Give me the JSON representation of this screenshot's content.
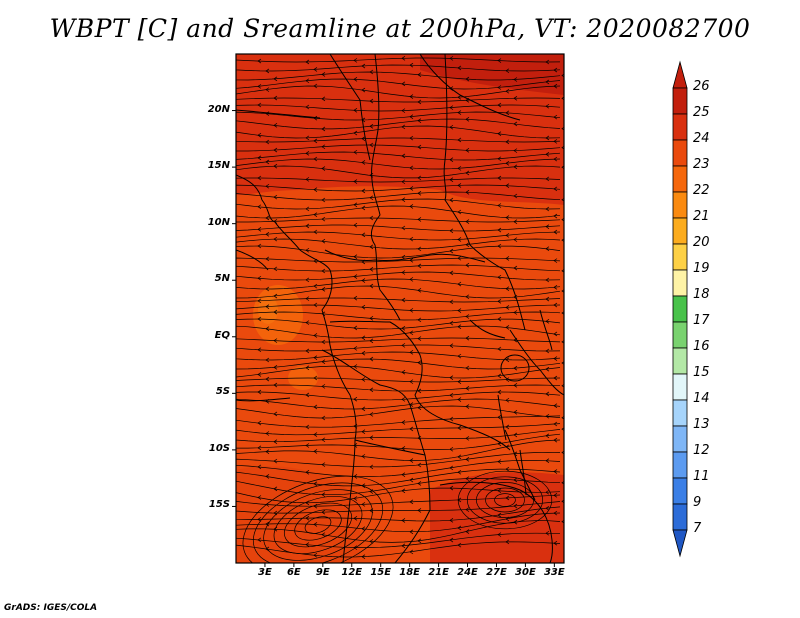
{
  "title": "WBPT [C] and Sreamline at 200hPa, VT: 2020082700",
  "credit": "GrADS: IGES/COLA",
  "map": {
    "lat_labels": [
      "20N",
      "15N",
      "10N",
      "5N",
      "EQ",
      "5S",
      "10S",
      "15S"
    ],
    "lat_values": [
      20,
      15,
      10,
      5,
      0,
      -5,
      -10,
      -15
    ],
    "lon_labels": [
      "3E",
      "6E",
      "9E",
      "12E",
      "15E",
      "18E",
      "21E",
      "24E",
      "27E",
      "30E",
      "33E"
    ],
    "lon_values": [
      3,
      6,
      9,
      12,
      15,
      18,
      21,
      24,
      27,
      30,
      33
    ],
    "lat_range": [
      -20,
      25
    ],
    "lon_range": [
      0,
      34
    ]
  },
  "colorbar": {
    "labels": [
      "26",
      "25",
      "24",
      "23",
      "22",
      "21",
      "20",
      "19",
      "18",
      "17",
      "16",
      "15",
      "14",
      "13",
      "12",
      "11",
      "9",
      "7"
    ],
    "colors": [
      "#c21f0d",
      "#d9300f",
      "#ea4a0d",
      "#f5670c",
      "#fa8a10",
      "#fcac1e",
      "#fdd045",
      "#fef3a6",
      "#48c24a",
      "#79d26f",
      "#b3e8a6",
      "#e2f6f9",
      "#a6d4fb",
      "#7fb6f6",
      "#5c9bf0",
      "#3b7fe6",
      "#2c6cd8",
      "#1f57c4"
    ]
  }
}
